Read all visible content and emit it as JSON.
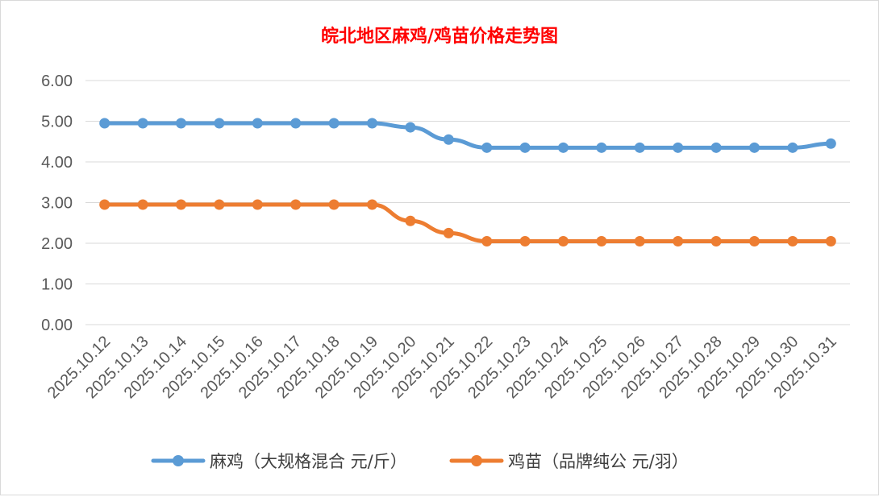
{
  "chart_data": {
    "type": "line",
    "title": "皖北地区麻鸡/鸡苗价格走势图",
    "xlabel": "",
    "ylabel": "",
    "ylim": [
      0,
      6
    ],
    "yticks": [
      "0.00",
      "1.00",
      "2.00",
      "3.00",
      "4.00",
      "5.00",
      "6.00"
    ],
    "grid": true,
    "legend_position": "bottom",
    "categories": [
      "2025.10.12",
      "2025.10.13",
      "2025.10.14",
      "2025.10.15",
      "2025.10.16",
      "2025.10.17",
      "2025.10.18",
      "2025.10.19",
      "2025.10.20",
      "2025.10.21",
      "2025.10.22",
      "2025.10.23",
      "2025.10.24",
      "2025.10.25",
      "2025.10.26",
      "2025.10.27",
      "2025.10.28",
      "2025.10.29",
      "2025.10.30",
      "2025.10.31"
    ],
    "series": [
      {
        "name": "麻鸡（大规格混合 元/斤）",
        "color": "#5B9BD5",
        "values": [
          4.95,
          4.95,
          4.95,
          4.95,
          4.95,
          4.95,
          4.95,
          4.95,
          4.85,
          4.55,
          4.35,
          4.35,
          4.35,
          4.35,
          4.35,
          4.35,
          4.35,
          4.35,
          4.35,
          4.45
        ]
      },
      {
        "name": "鸡苗（品牌纯公 元/羽）",
        "color": "#ED7D31",
        "values": [
          2.95,
          2.95,
          2.95,
          2.95,
          2.95,
          2.95,
          2.95,
          2.95,
          2.55,
          2.25,
          2.05,
          2.05,
          2.05,
          2.05,
          2.05,
          2.05,
          2.05,
          2.05,
          2.05,
          2.05
        ]
      }
    ],
    "title_color": "#FF0000"
  }
}
